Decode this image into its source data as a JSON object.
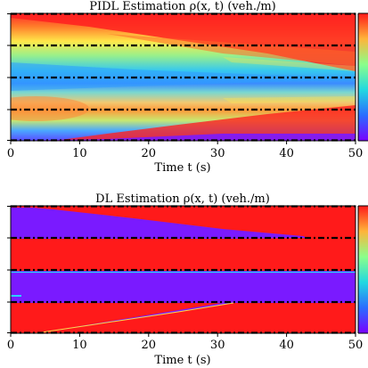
{
  "chart_data": [
    {
      "type": "heatmap",
      "title": "PIDL Estimation ρ(x, t) (veh./m)",
      "xlabel": "Time t (s)",
      "ylabel": "",
      "xlim": [
        0,
        50
      ],
      "x_ticks": [
        "0",
        "10",
        "20",
        "30",
        "40",
        "50"
      ],
      "colormap": "rainbow",
      "colorbar": true,
      "grid": false,
      "regions": [
        {
          "name": "upper-high",
          "color": "#ff1a1a",
          "description_value": "high"
        },
        {
          "name": "center-low",
          "color": "#3a8cff",
          "description_value": "low"
        },
        {
          "name": "lower-medium",
          "color": "#ff9a3a",
          "description_value": "medium"
        },
        {
          "name": "bottom-low",
          "color": "#7a1aff",
          "description_value": "very low"
        }
      ],
      "sensor_lines": 5
    },
    {
      "type": "heatmap",
      "title": "DL Estimation ρ(x, t) (veh./m)",
      "xlabel": "Time t (s)",
      "ylabel": "",
      "xlim": [
        0,
        50
      ],
      "x_ticks": [
        "0",
        "10",
        "20",
        "30",
        "40",
        "50"
      ],
      "colormap": "rainbow",
      "colorbar": true,
      "grid": false,
      "sensor_lines": 5
    }
  ]
}
